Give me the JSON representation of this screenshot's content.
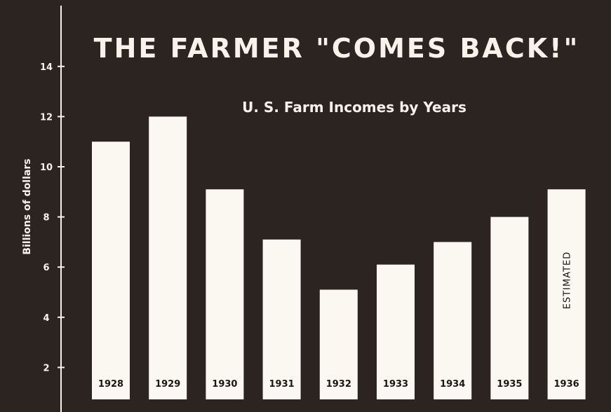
{
  "chart_data": {
    "type": "bar",
    "title": "THE FARMER \"COMES BACK!\"",
    "subtitle": "U. S. Farm Incomes by Years",
    "xlabel": "",
    "ylabel": "Billions of dollars",
    "categories": [
      "1928",
      "1929",
      "1930",
      "1931",
      "1932",
      "1933",
      "1934",
      "1935",
      "1936"
    ],
    "values": [
      11,
      12,
      9.1,
      7.1,
      5.1,
      6.1,
      7,
      8,
      9.1
    ],
    "ylim": [
      0,
      14
    ],
    "yticks": [
      2,
      4,
      6,
      8,
      10,
      12,
      14
    ],
    "annotations": [
      {
        "category": "1936",
        "text": "ESTIMATED"
      }
    ],
    "grid": false,
    "legend": "none",
    "colors": {
      "background": "#2b2420",
      "bar": "#fbf8f1",
      "axis": "#f7f2ea",
      "bar_text": "#1c1612"
    }
  }
}
